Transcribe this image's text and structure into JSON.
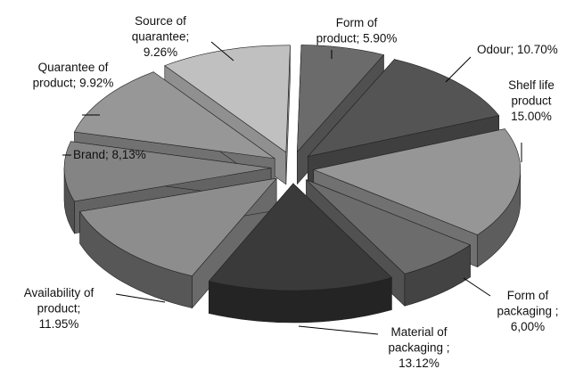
{
  "chart_data": {
    "type": "pie",
    "style": "exploded-3d",
    "slices": [
      {
        "key": "form_product",
        "label": "Form of product; 5.90%",
        "lines": [
          "Form of",
          "product; 5.90%"
        ],
        "value": 5.9,
        "color": "#6b6b6b"
      },
      {
        "key": "odour",
        "label": "Odour; 10.70%",
        "lines": [
          "Odour; 10.70%"
        ],
        "value": 10.7,
        "color": "#545454"
      },
      {
        "key": "shelf_life",
        "label": "Shelf life product 15.00%",
        "lines": [
          "Shelf life",
          "product",
          "15.00%"
        ],
        "value": 15.0,
        "color": "#969696"
      },
      {
        "key": "form_packaging",
        "label": "Form of packaging ; 6,00%",
        "lines": [
          "Form of",
          "packaging ;",
          "6,00%"
        ],
        "value": 6.0,
        "color": "#6c6c6c"
      },
      {
        "key": "material_pack",
        "label": "Material of packaging ; 13.12%",
        "lines": [
          "Material of",
          "packaging ;",
          "13.12%"
        ],
        "value": 13.12,
        "color": "#3a3a3a"
      },
      {
        "key": "availability",
        "label": "Availability of product; 11.95%",
        "lines": [
          "Availability of",
          "product;",
          "11.95%"
        ],
        "value": 11.95,
        "color": "#8d8d8d"
      },
      {
        "key": "brand",
        "label": "Brand; 8,13%",
        "lines": [
          "Brand; 8,13%"
        ],
        "value": 8.13,
        "color": "#848484"
      },
      {
        "key": "quarantee_prod",
        "label": "Quarantee of product; 9.92%",
        "lines": [
          "Quarantee of",
          "product; 9.92%"
        ],
        "value": 9.92,
        "color": "#979797"
      },
      {
        "key": "source_quar",
        "label": "Source of quarantee; 9.26%",
        "lines": [
          "Source of",
          "quarantee;",
          "9.26%"
        ],
        "value": 9.26,
        "color": "#c0c0c0"
      }
    ]
  }
}
